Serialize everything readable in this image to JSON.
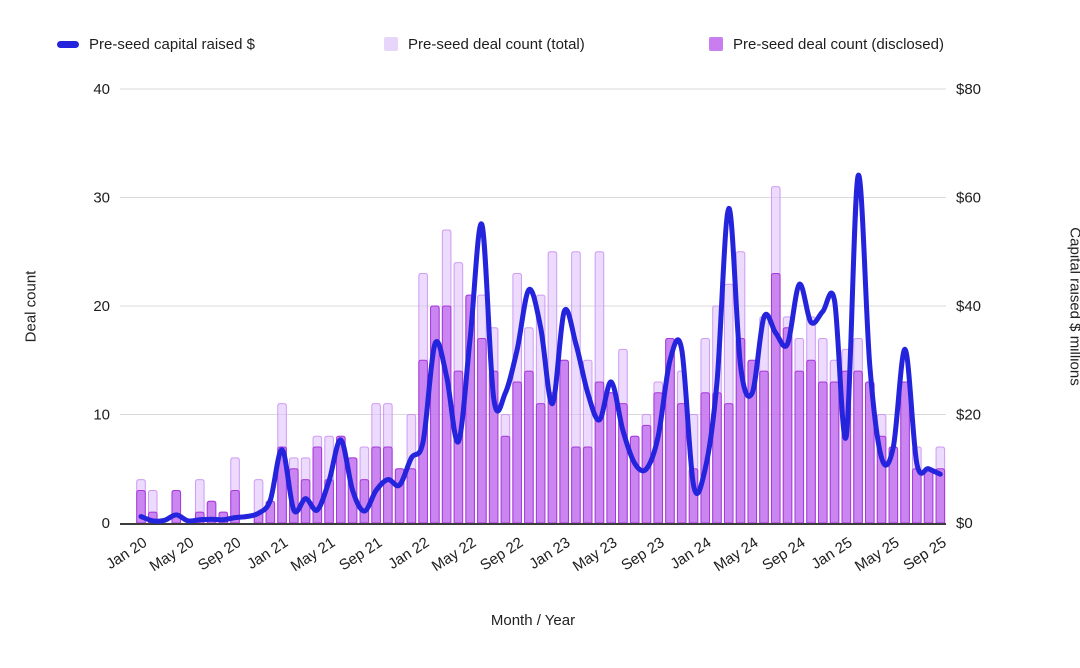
{
  "legend": [
    {
      "label": "Pre-seed capital raised $",
      "type": "line",
      "color": "#2424dd"
    },
    {
      "label": "Pre-seed deal count (total)",
      "type": "box",
      "color": "#e7d6f9",
      "border": "#d2a9f3"
    },
    {
      "label": "Pre-seed deal count (disclosed)",
      "type": "box",
      "color": "#c87eee",
      "border": "#a946dd"
    }
  ],
  "chart_data": {
    "type": "combo",
    "title": "",
    "xlabel": "Month / Year",
    "y_left": {
      "label": "Deal count",
      "ticks": [
        0,
        10,
        20,
        30,
        40
      ],
      "range": [
        0,
        40
      ]
    },
    "y_right": {
      "label": "Capital raised $ millions",
      "ticks": [
        "$0",
        "$20",
        "$40",
        "$60",
        "$80"
      ],
      "range": [
        0,
        80
      ]
    },
    "x_tick_labels": [
      "Jan 20",
      "May 20",
      "Sep 20",
      "Jan 21",
      "May 21",
      "Sep 21",
      "Jan 22",
      "May 22",
      "Sep 22",
      "Jan 23",
      "May 23",
      "Sep 23",
      "Jan 24",
      "May 24",
      "Sep 24",
      "Jan 25",
      "May 25",
      "Sep 25"
    ],
    "categories": [
      "Jan 20",
      "Feb 20",
      "Mar 20",
      "Apr 20",
      "May 20",
      "Jun 20",
      "Jul 20",
      "Aug 20",
      "Sep 20",
      "Oct 20",
      "Nov 20",
      "Dec 20",
      "Jan 21",
      "Feb 21",
      "Mar 21",
      "Apr 21",
      "May 21",
      "Jun 21",
      "Jul 21",
      "Aug 21",
      "Sep 21",
      "Oct 21",
      "Nov 21",
      "Dec 21",
      "Jan 22",
      "Feb 22",
      "Mar 22",
      "Apr 22",
      "May 22",
      "Jun 22",
      "Jul 22",
      "Aug 22",
      "Sep 22",
      "Oct 22",
      "Nov 22",
      "Dec 22",
      "Jan 23",
      "Feb 23",
      "Mar 23",
      "Apr 23",
      "May 23",
      "Jun 23",
      "Jul 23",
      "Aug 23",
      "Sep 23",
      "Oct 23",
      "Nov 23",
      "Dec 23",
      "Jan 24",
      "Feb 24",
      "Mar 24",
      "Apr 24",
      "May 24",
      "Jun 24",
      "Jul 24",
      "Aug 24",
      "Sep 24",
      "Oct 24",
      "Nov 24",
      "Dec 24",
      "Jan 25",
      "Feb 25",
      "Mar 25",
      "Apr 25",
      "May 25",
      "Jun 25",
      "Jul 25",
      "Aug 25",
      "Sep 25"
    ],
    "series": [
      {
        "name": "Pre-seed deal count (total)",
        "type": "bar",
        "axis": "left",
        "fill": "rgba(224,195,250,0.60)",
        "stroke": "rgba(203,146,243,0.90)",
        "values": [
          4,
          3,
          0,
          3,
          0,
          4,
          2,
          1,
          6,
          0,
          4,
          2,
          11,
          6,
          6,
          8,
          8,
          8,
          6,
          7,
          11,
          11,
          5,
          10,
          23,
          20,
          27,
          24,
          21,
          21,
          18,
          10,
          23,
          18,
          21,
          25,
          15,
          25,
          15,
          25,
          12,
          16,
          8,
          10,
          13,
          17,
          14,
          10,
          17,
          20,
          22,
          25,
          15,
          19,
          31,
          19,
          17,
          19,
          17,
          15,
          16,
          17,
          13,
          10,
          7,
          13,
          7,
          5,
          7
        ]
      },
      {
        "name": "Pre-seed deal count (disclosed)",
        "type": "bar",
        "axis": "left",
        "fill": "rgba(190,100,235,0.72)",
        "stroke": "rgba(162,52,216,0.95)",
        "values": [
          3,
          1,
          0,
          3,
          0,
          1,
          2,
          1,
          3,
          0,
          1,
          2,
          7,
          5,
          4,
          7,
          4,
          8,
          6,
          4,
          7,
          7,
          5,
          5,
          15,
          20,
          20,
          14,
          21,
          17,
          14,
          8,
          13,
          14,
          11,
          12,
          15,
          7,
          7,
          13,
          12,
          11,
          8,
          9,
          12,
          17,
          11,
          5,
          12,
          12,
          11,
          17,
          15,
          14,
          23,
          18,
          14,
          15,
          13,
          13,
          14,
          14,
          13,
          8,
          7,
          13,
          5,
          5,
          5
        ]
      },
      {
        "name": "Pre-seed capital raised $",
        "type": "line",
        "axis": "right",
        "color": "#2424dd",
        "values": [
          1.2,
          0.4,
          0.5,
          1.5,
          0.4,
          0.6,
          0.7,
          0.6,
          1,
          1.2,
          1.8,
          4.2,
          13.5,
          2.4,
          4.5,
          2.4,
          7.8,
          15.3,
          6,
          2.2,
          6,
          8,
          7,
          12,
          15,
          33,
          27,
          15,
          34,
          55,
          23,
          24,
          32,
          43,
          36,
          22,
          39,
          33,
          24,
          19,
          26,
          17,
          11,
          10,
          16,
          30,
          32,
          7,
          10,
          26,
          58,
          29,
          24,
          38,
          35,
          33,
          44,
          37,
          39,
          41,
          16,
          64,
          29,
          12,
          14,
          32,
          11,
          10,
          9
        ]
      }
    ],
    "grid": {
      "color": "#dadada",
      "zero_axis_color": "#3c3c3c"
    }
  },
  "layout_text": {
    "xlabel": "Month / Year",
    "ylabel_left": "Deal count",
    "ylabel_right": "Capital raised $ millions"
  }
}
